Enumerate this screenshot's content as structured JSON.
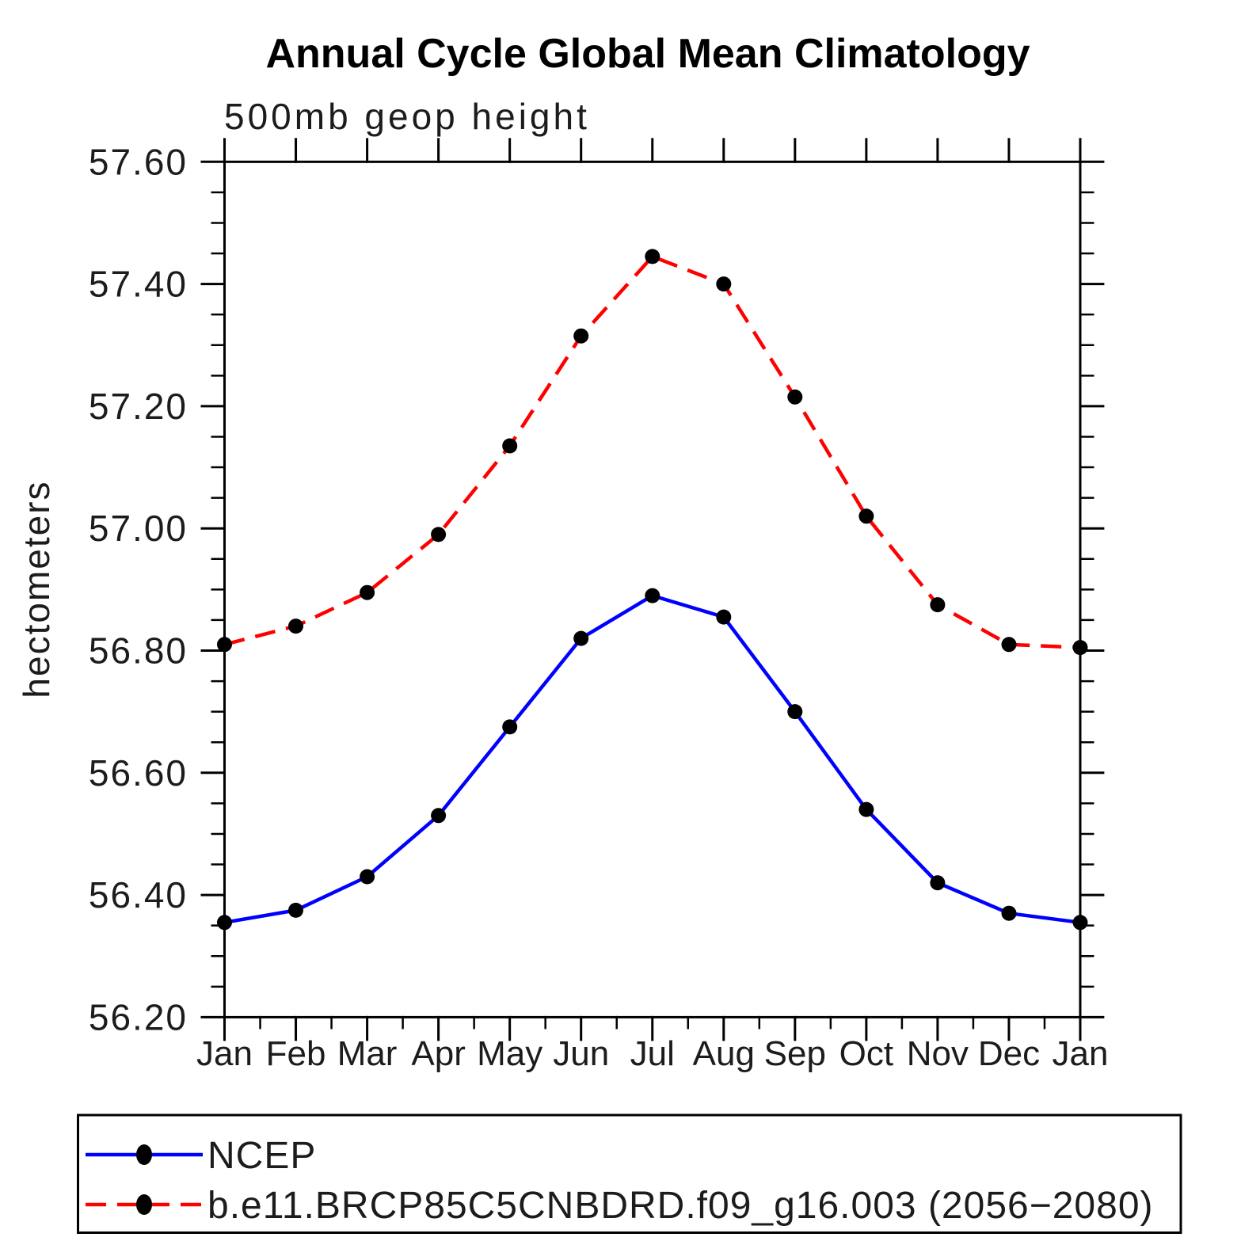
{
  "title": "Annual Cycle Global Mean Climatology",
  "subtitle": "500mb geop height",
  "ylabel": "hectometers",
  "colors": {
    "ncep_line": "#0000ff",
    "model_line": "#ff0000",
    "marker": "#000000",
    "axis": "#000000",
    "background": "#ffffff"
  },
  "chart_data": {
    "type": "line",
    "title": "Annual Cycle Global Mean Climatology",
    "subtitle": "500mb geop height",
    "xlabel": "",
    "ylabel": "hectometers",
    "categories": [
      "Jan",
      "Feb",
      "Mar",
      "Apr",
      "May",
      "Jun",
      "Jul",
      "Aug",
      "Sep",
      "Oct",
      "Nov",
      "Dec",
      "Jan"
    ],
    "y_tick_labels": [
      "56.20",
      "56.40",
      "56.60",
      "56.80",
      "57.00",
      "57.20",
      "57.40",
      "57.60"
    ],
    "y_ticks": [
      56.2,
      56.4,
      56.6,
      56.8,
      57.0,
      57.2,
      57.4,
      57.6
    ],
    "ylim": [
      56.2,
      57.6
    ],
    "y_minor_step": 0.05,
    "grid": false,
    "legend_position": "bottom",
    "series": [
      {
        "name": "NCEP",
        "color": "#0000ff",
        "style": "solid",
        "marker": "filled-circle",
        "values": [
          56.355,
          56.375,
          56.43,
          56.53,
          56.675,
          56.82,
          56.89,
          56.855,
          56.7,
          56.54,
          56.42,
          56.37,
          56.355
        ]
      },
      {
        "name": "b.e11.BRCP85C5CNBDRD.f09_g16.003 (2056−2080)",
        "color": "#ff0000",
        "style": "dashed",
        "marker": "filled-circle",
        "values": [
          56.81,
          56.84,
          56.895,
          56.99,
          57.135,
          57.315,
          57.445,
          57.4,
          57.215,
          57.02,
          56.875,
          56.81,
          56.805
        ]
      }
    ]
  }
}
